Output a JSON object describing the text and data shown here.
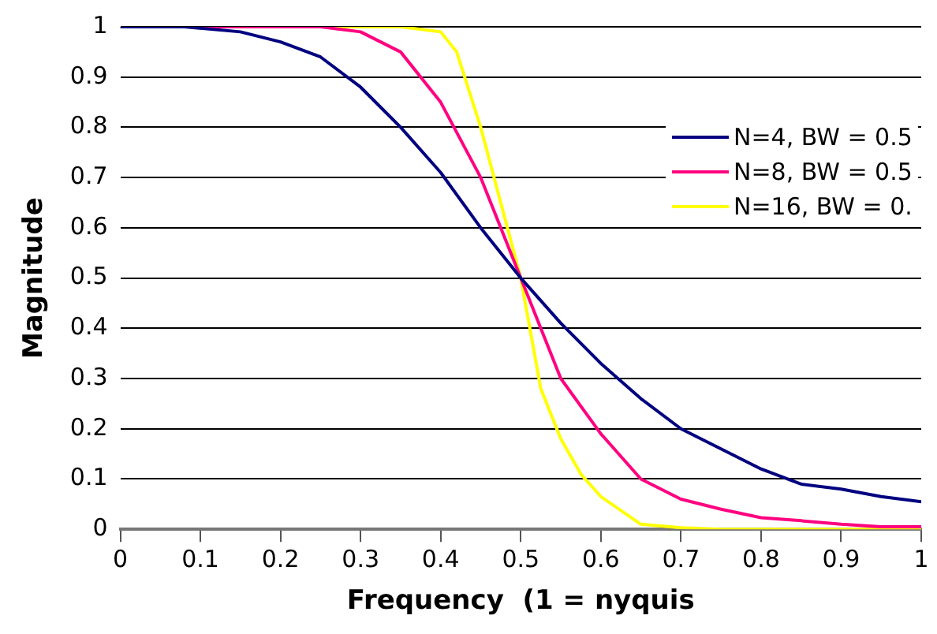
{
  "chart_data": {
    "type": "line",
    "xlabel": "Frequency  (1 = nyquis",
    "ylabel": "Magnitude",
    "xlim": [
      0,
      1
    ],
    "xticks": [
      0,
      0.1,
      0.2,
      0.3,
      0.4,
      0.5,
      0.6,
      0.7,
      0.8,
      0.9,
      1
    ],
    "ylim": [
      0,
      1
    ],
    "yticks": [
      0,
      0.1,
      0.2,
      0.3,
      0.4,
      0.5,
      0.6,
      0.7,
      0.8,
      0.9,
      1
    ],
    "grid": "y",
    "legend": "right",
    "marker": "none",
    "line_style": "solid",
    "series": [
      {
        "name": "N=4, BW = 0.5",
        "color": "#000080",
        "x": [
          0,
          0.08,
          0.15,
          0.2,
          0.25,
          0.3,
          0.35,
          0.4,
          0.45,
          0.5,
          0.55,
          0.6,
          0.65,
          0.7,
          0.75,
          0.8,
          0.85,
          0.9,
          0.95,
          1
        ],
        "values": [
          1,
          1,
          0.99,
          0.97,
          0.94,
          0.88,
          0.8,
          0.71,
          0.6,
          0.5,
          0.41,
          0.33,
          0.26,
          0.2,
          0.16,
          0.12,
          0.09,
          0.08,
          0.065,
          0.055
        ]
      },
      {
        "name": "N=8, BW = 0.5",
        "color": "#ff0080",
        "x": [
          0,
          0.25,
          0.3,
          0.35,
          0.4,
          0.45,
          0.5,
          0.55,
          0.6,
          0.65,
          0.7,
          0.75,
          0.8,
          0.85,
          0.9,
          0.95,
          1
        ],
        "values": [
          1,
          1,
          0.99,
          0.95,
          0.85,
          0.7,
          0.5,
          0.3,
          0.19,
          0.1,
          0.06,
          0.04,
          0.023,
          0.017,
          0.01,
          0.005,
          0.005
        ]
      },
      {
        "name": "N=16, BW = 0.",
        "color": "#ffff00",
        "x": [
          0,
          0.35,
          0.4,
          0.42,
          0.45,
          0.475,
          0.5,
          0.525,
          0.55,
          0.575,
          0.6,
          0.65,
          0.7,
          0.75,
          1
        ],
        "values": [
          1,
          1,
          0.99,
          0.95,
          0.8,
          0.65,
          0.5,
          0.28,
          0.18,
          0.11,
          0.065,
          0.01,
          0.003,
          0,
          0
        ]
      }
    ]
  }
}
